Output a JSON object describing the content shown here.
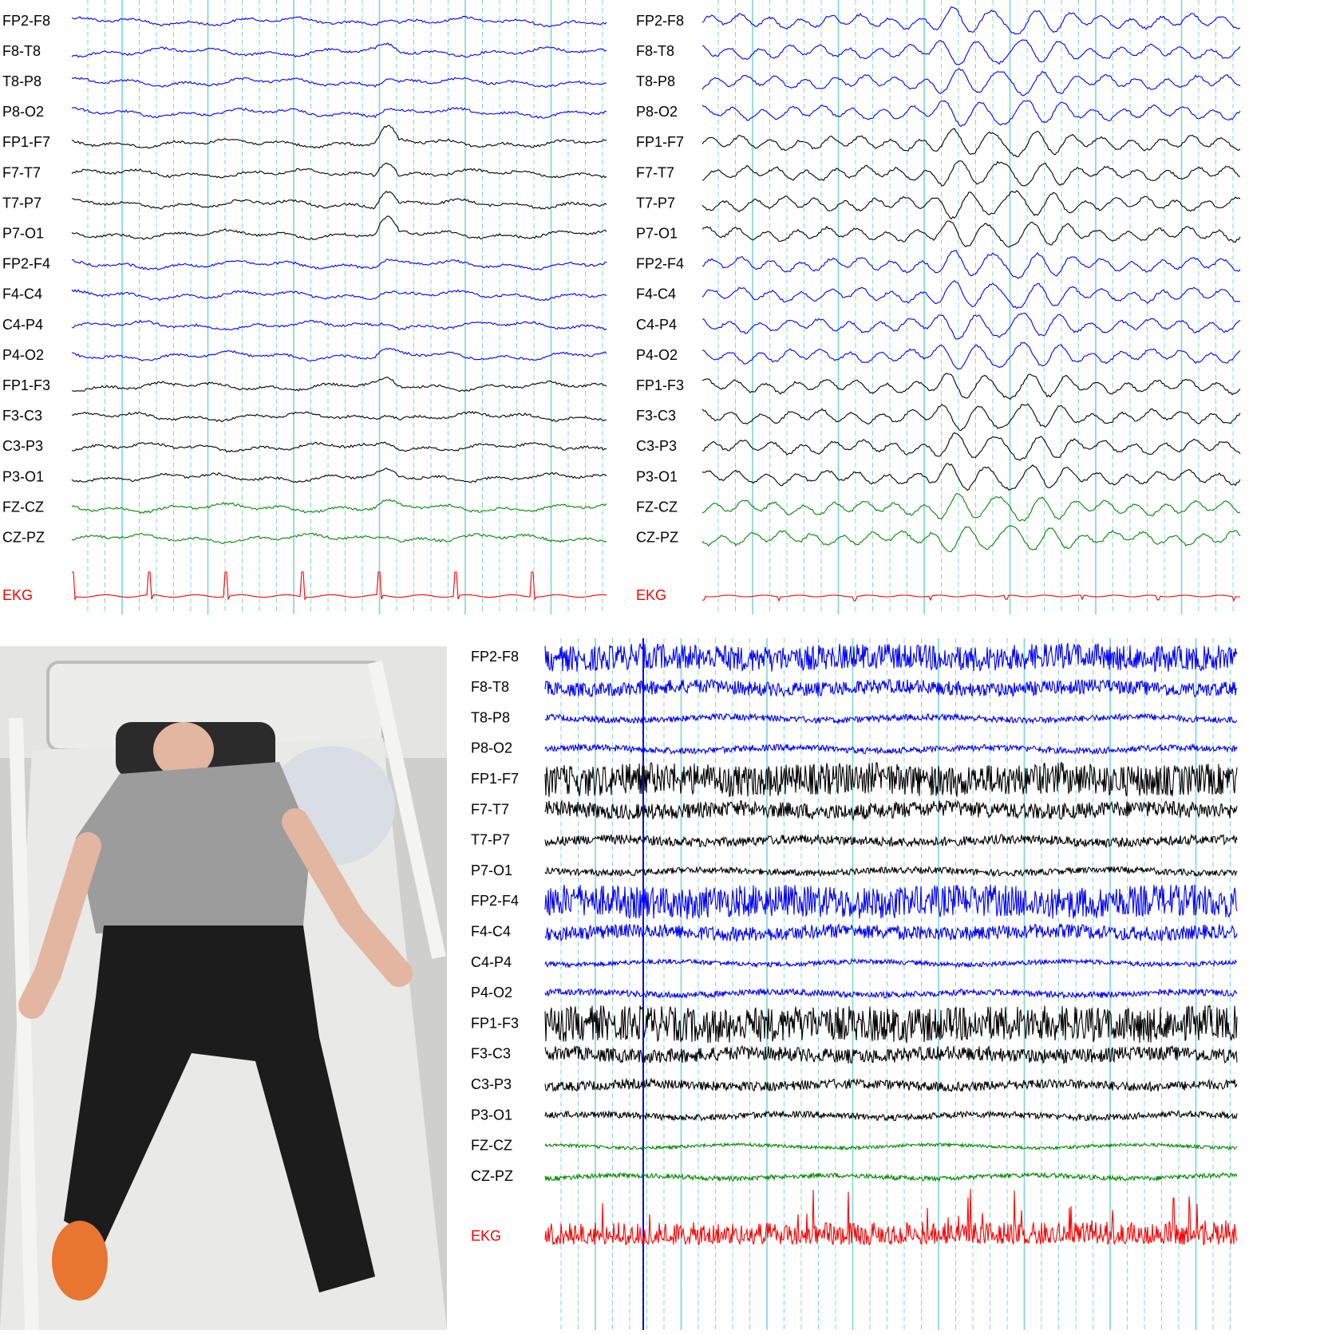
{
  "panels": [
    {
      "channels": [
        "FP2-F8",
        "F8-T8",
        "T8-P8",
        "P8-O2",
        "FP1-F7",
        "F7-T7",
        "T7-P7",
        "P7-O1",
        "FP2-F4",
        "F4-C4",
        "C4-P4",
        "P4-O2",
        "FP1-F3",
        "F3-C3",
        "C3-P3",
        "P3-O1",
        "FZ-CZ",
        "CZ-PZ",
        "EKG"
      ]
    },
    {
      "channels": [
        "FP2-F8",
        "F8-T8",
        "T8-P8",
        "P8-O2",
        "FP1-F7",
        "F7-T7",
        "T7-P7",
        "P7-O1",
        "FP2-F4",
        "F4-C4",
        "C4-P4",
        "P4-O2",
        "FP1-F3",
        "F3-C3",
        "C3-P3",
        "P3-O1",
        "FZ-CZ",
        "CZ-PZ",
        "EKG"
      ]
    },
    {
      "channels": [
        "FP2-F8",
        "F8-T8",
        "T8-P8",
        "P8-O2",
        "FP1-F7",
        "F7-T7",
        "T7-P7",
        "P7-O1",
        "FP2-F4",
        "F4-C4",
        "C4-P4",
        "P4-O2",
        "FP1-F3",
        "F3-C3",
        "C3-P3",
        "P3-O1",
        "FZ-CZ",
        "CZ-PZ",
        "EKG"
      ]
    }
  ]
}
